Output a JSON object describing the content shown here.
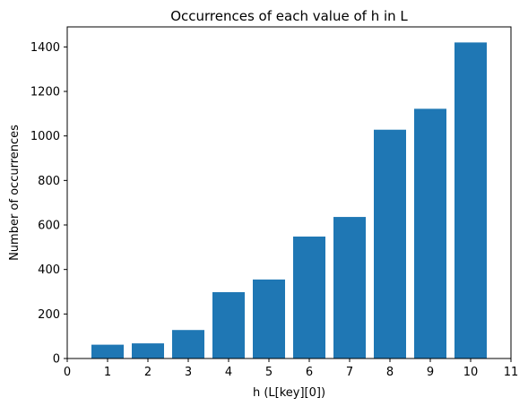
{
  "chart_data": {
    "type": "bar",
    "title": "Occurrences of each value of h in L",
    "xlabel": "h (L[key][0])",
    "ylabel": "Number of occurrences",
    "categories": [
      1,
      2,
      3,
      4,
      5,
      6,
      7,
      8,
      9,
      10
    ],
    "values": [
      62,
      68,
      128,
      298,
      355,
      548,
      636,
      1028,
      1122,
      1420
    ],
    "xlim": [
      0,
      11
    ],
    "ylim": [
      0,
      1490
    ],
    "xticks": [
      "0",
      "1",
      "2",
      "3",
      "4",
      "5",
      "6",
      "7",
      "8",
      "9",
      "10",
      "11"
    ],
    "yticks": [
      "0",
      "200",
      "400",
      "600",
      "800",
      "1000",
      "1200",
      "1400"
    ],
    "bar_color": "#1f77b4",
    "grid": false,
    "legend": "none"
  }
}
